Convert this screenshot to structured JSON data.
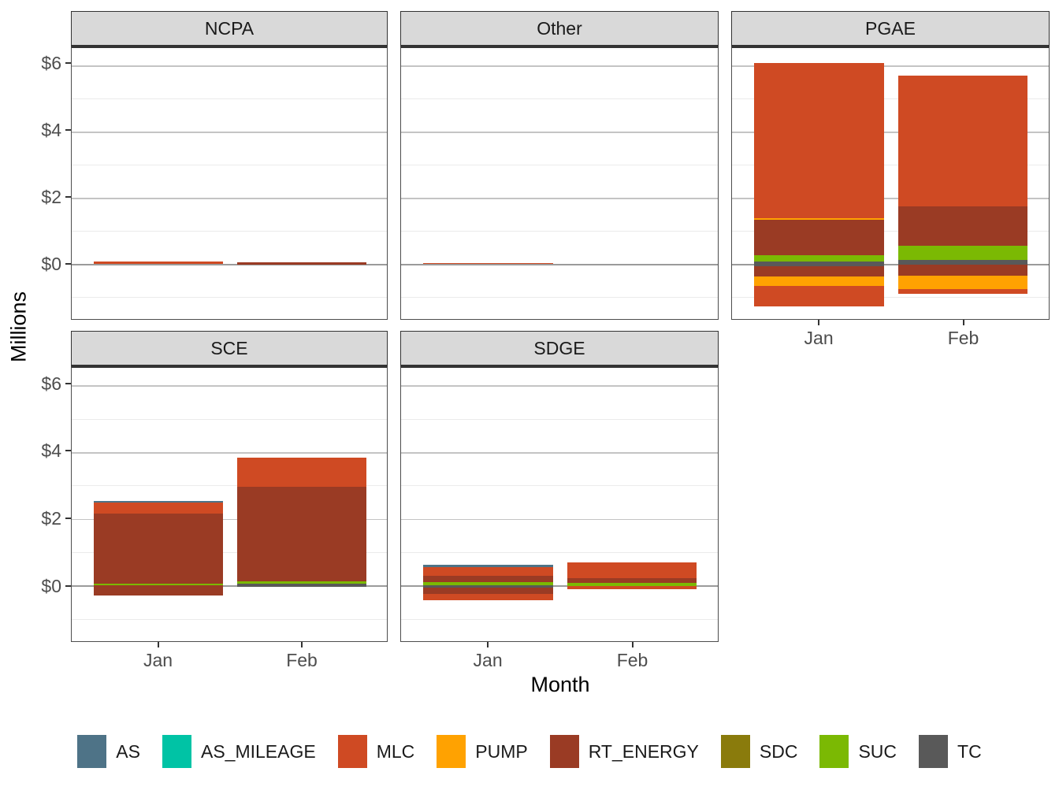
{
  "theme": {
    "strip_bg": "#D9D9D9",
    "strip_border": "#333333",
    "panel_border": "#4D4D4D",
    "grid_major": "#C4C4C4",
    "grid_minor": "#EBEBEB",
    "grid_zero": "#9B9B9B",
    "tick_label_color": "#4D4D4D",
    "text_color": "#1A1A1A"
  },
  "chart_data": {
    "type": "bar",
    "stacked": true,
    "faceted_by": "entity",
    "xlabel": "Month",
    "ylabel": "Millions",
    "x": [
      "Jan",
      "Feb"
    ],
    "y_axis": {
      "units": "millions USD",
      "ticks": [
        {
          "label": "$6",
          "value": 6
        },
        {
          "label": "$4",
          "value": 4
        },
        {
          "label": "$2",
          "value": 2
        },
        {
          "label": "$0",
          "value": 0
        }
      ],
      "minor": [
        5,
        3,
        1,
        -1
      ],
      "ylim": [
        -1.67,
        6.53
      ],
      "grid": true
    },
    "categories": [
      "AS",
      "AS_MILEAGE",
      "MLC",
      "PUMP",
      "RT_ENERGY",
      "SDC",
      "SUC",
      "TC"
    ],
    "palette": {
      "AS": "#4E7387",
      "AS_MILEAGE": "#00C3A5",
      "MLC": "#CF4A23",
      "PUMP": "#FFA201",
      "RT_ENERGY": "#9A3B24",
      "SDC": "#8A7B0C",
      "SUC": "#7BB903",
      "TC": "#595959"
    },
    "legend_position": "bottom",
    "facets": [
      {
        "name": "NCPA",
        "row": 0,
        "col": 0,
        "show_x_labels": false,
        "bars": {
          "Jan": [
            {
              "c": "MLC",
              "y0": 0.0,
              "y1": 0.08
            }
          ],
          "Feb": [
            {
              "c": "RT_ENERGY",
              "y0": -0.03,
              "y1": 0.05
            }
          ]
        }
      },
      {
        "name": "Other",
        "row": 0,
        "col": 1,
        "show_x_labels": false,
        "bars": {
          "Jan": [
            {
              "c": "MLC",
              "y0": -0.01,
              "y1": 0.03
            }
          ],
          "Feb": []
        }
      },
      {
        "name": "PGAE",
        "row": 0,
        "col": 2,
        "show_x_labels": true,
        "bars": {
          "Jan": [
            {
              "c": "MLC",
              "y0": 1.39,
              "y1": 6.07
            },
            {
              "c": "PUMP",
              "y0": 1.33,
              "y1": 1.39
            },
            {
              "c": "RT_ENERGY",
              "y0": 0.26,
              "y1": 1.33
            },
            {
              "c": "SUC",
              "y0": 0.06,
              "y1": 0.26
            },
            {
              "c": "TC",
              "y0": -0.08,
              "y1": 0.06
            },
            {
              "c": "RT_ENERGY",
              "y0": -0.38,
              "y1": -0.08
            },
            {
              "c": "PUMP",
              "y0": -0.68,
              "y1": -0.38
            },
            {
              "c": "MLC",
              "y0": -1.3,
              "y1": -0.68
            }
          ],
          "Feb": [
            {
              "c": "MLC",
              "y0": 1.74,
              "y1": 5.69
            },
            {
              "c": "RT_ENERGY",
              "y0": 0.54,
              "y1": 1.74
            },
            {
              "c": "SUC",
              "y0": 0.12,
              "y1": 0.54
            },
            {
              "c": "TC",
              "y0": -0.03,
              "y1": 0.12
            },
            {
              "c": "RT_ENERGY",
              "y0": -0.37,
              "y1": -0.03
            },
            {
              "c": "PUMP",
              "y0": -0.77,
              "y1": -0.37
            },
            {
              "c": "MLC",
              "y0": -0.91,
              "y1": -0.77
            }
          ]
        }
      },
      {
        "name": "SCE",
        "row": 1,
        "col": 0,
        "show_x_labels": true,
        "bars": {
          "Jan": [
            {
              "c": "AS",
              "y0": 2.48,
              "y1": 2.53
            },
            {
              "c": "MLC",
              "y0": 2.15,
              "y1": 2.48
            },
            {
              "c": "RT_ENERGY",
              "y0": 0.06,
              "y1": 2.15
            },
            {
              "c": "SUC",
              "y0": 0.0,
              "y1": 0.06
            },
            {
              "c": "RT_ENERGY",
              "y0": -0.29,
              "y1": 0.0
            }
          ],
          "Feb": [
            {
              "c": "MLC",
              "y0": 2.96,
              "y1": 3.84
            },
            {
              "c": "RT_ENERGY",
              "y0": 0.13,
              "y1": 2.96
            },
            {
              "c": "SUC",
              "y0": 0.06,
              "y1": 0.13
            },
            {
              "c": "TC",
              "y0": -0.04,
              "y1": 0.06
            }
          ]
        }
      },
      {
        "name": "SDGE",
        "row": 1,
        "col": 1,
        "show_x_labels": true,
        "bars": {
          "Jan": [
            {
              "c": "AS",
              "y0": 0.56,
              "y1": 0.62
            },
            {
              "c": "MLC",
              "y0": 0.28,
              "y1": 0.56
            },
            {
              "c": "RT_ENERGY",
              "y0": 0.11,
              "y1": 0.28
            },
            {
              "c": "SUC",
              "y0": 0.01,
              "y1": 0.11
            },
            {
              "c": "TC",
              "y0": -0.07,
              "y1": 0.01
            },
            {
              "c": "RT_ENERGY",
              "y0": -0.26,
              "y1": -0.07
            },
            {
              "c": "MLC",
              "y0": -0.44,
              "y1": -0.26
            }
          ],
          "Feb": [
            {
              "c": "MLC",
              "y0": 0.22,
              "y1": 0.69
            },
            {
              "c": "RT_ENERGY",
              "y0": 0.08,
              "y1": 0.22
            },
            {
              "c": "SUC",
              "y0": -0.02,
              "y1": 0.08
            },
            {
              "c": "MLC",
              "y0": -0.12,
              "y1": -0.02
            }
          ]
        }
      }
    ]
  }
}
